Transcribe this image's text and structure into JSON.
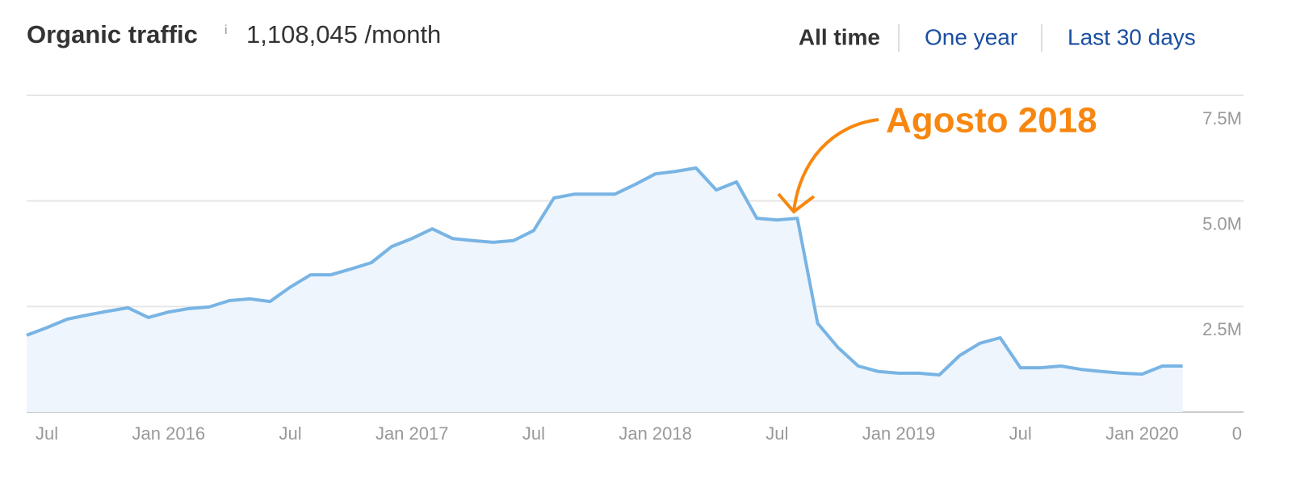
{
  "chart_data": {
    "type": "area",
    "title": "Organic traffic",
    "info_icon": "i",
    "headline": "1,108,045 /month",
    "ranges": [
      "All time",
      "One year",
      "Last 30 days"
    ],
    "annotation": {
      "text": "Agosto 2018",
      "x": "2018-08"
    },
    "color": "#78b4e4",
    "fill": "#eef5fc",
    "grid": true,
    "x": [
      "2015-06",
      "2015-07",
      "2015-08",
      "2015-09",
      "2015-10",
      "2015-11",
      "2015-12",
      "2016-01",
      "2016-02",
      "2016-03",
      "2016-04",
      "2016-05",
      "2016-06",
      "2016-07",
      "2016-08",
      "2016-09",
      "2016-10",
      "2016-11",
      "2016-12",
      "2017-01",
      "2017-02",
      "2017-03",
      "2017-04",
      "2017-05",
      "2017-06",
      "2017-07",
      "2017-08",
      "2017-09",
      "2017-10",
      "2017-11",
      "2017-12",
      "2018-01",
      "2018-02",
      "2018-03",
      "2018-04",
      "2018-05",
      "2018-06",
      "2018-07",
      "2018-08",
      "2018-09",
      "2018-10",
      "2018-11",
      "2018-12",
      "2019-01",
      "2019-02",
      "2019-03",
      "2019-04",
      "2019-05",
      "2019-06",
      "2019-07",
      "2019-08",
      "2019-09",
      "2019-10",
      "2019-11",
      "2019-12",
      "2020-01",
      "2020-02",
      "2020-03"
    ],
    "values": [
      1820000,
      2000000,
      2200000,
      2300000,
      2390000,
      2470000,
      2240000,
      2370000,
      2450000,
      2490000,
      2640000,
      2680000,
      2620000,
      2960000,
      3250000,
      3250000,
      3390000,
      3540000,
      3920000,
      4110000,
      4340000,
      4110000,
      4060000,
      4020000,
      4060000,
      4300000,
      5070000,
      5160000,
      5160000,
      5160000,
      5390000,
      5640000,
      5700000,
      5780000,
      5260000,
      5450000,
      4590000,
      4550000,
      4590000,
      2100000,
      1530000,
      1090000,
      960000,
      920000,
      920000,
      880000,
      1340000,
      1630000,
      1760000,
      1050000,
      1050000,
      1090000,
      1010000,
      960000,
      920000,
      900000,
      1090000,
      1090000
    ],
    "xlim": [
      "2015-06",
      "2020-06"
    ],
    "xticks": [
      {
        "value": "2015-07",
        "label": "Jul"
      },
      {
        "value": "2016-01",
        "label": "Jan 2016"
      },
      {
        "value": "2016-07",
        "label": "Jul"
      },
      {
        "value": "2017-01",
        "label": "Jan 2017"
      },
      {
        "value": "2017-07",
        "label": "Jul"
      },
      {
        "value": "2018-01",
        "label": "Jan 2018"
      },
      {
        "value": "2018-07",
        "label": "Jul"
      },
      {
        "value": "2019-01",
        "label": "Jan 2019"
      },
      {
        "value": "2019-07",
        "label": "Jul"
      },
      {
        "value": "2020-01",
        "label": "Jan 2020"
      }
    ],
    "ylim": [
      0,
      7500000
    ],
    "yticks": [
      0,
      {
        "value": 2500000,
        "label": "2.5M"
      },
      {
        "value": 5000000,
        "label": "5.0M"
      },
      {
        "value": 7500000,
        "label": "7.5M"
      }
    ]
  }
}
